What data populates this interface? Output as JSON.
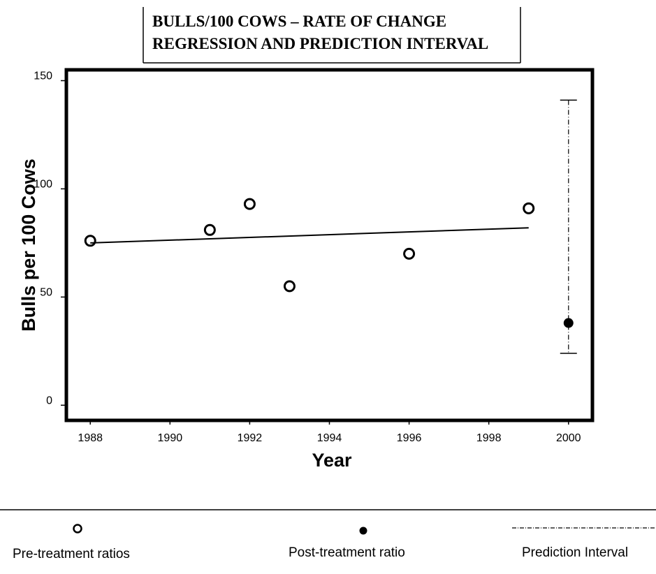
{
  "chart_data": {
    "type": "scatter",
    "title_line1": "BULLS/100 COWS – RATE OF CHANGE",
    "title_line2": "REGRESSION AND PREDICTION INTERVAL",
    "xlabel": "Year",
    "ylabel": "Bulls per 100 Cows",
    "xlim": [
      1987.4,
      2000.6
    ],
    "ylim": [
      -7,
      155
    ],
    "x_ticks": [
      1988,
      1990,
      1992,
      1994,
      1996,
      1998,
      2000
    ],
    "y_ticks": [
      0,
      50,
      100,
      150
    ],
    "series": [
      {
        "name": "Pre-treatment ratios",
        "marker": "open-circle",
        "points": [
          {
            "x": 1988,
            "y": 76
          },
          {
            "x": 1991,
            "y": 81
          },
          {
            "x": 1992,
            "y": 93
          },
          {
            "x": 1993,
            "y": 55
          },
          {
            "x": 1996,
            "y": 70
          },
          {
            "x": 1999,
            "y": 91
          }
        ]
      },
      {
        "name": "Post-treatment ratio",
        "marker": "filled-circle",
        "points": [
          {
            "x": 2000,
            "y": 38
          }
        ]
      }
    ],
    "regression_line": {
      "x_start": 1988,
      "y_start": 75,
      "x_end": 1999,
      "y_end": 82
    },
    "prediction_interval": {
      "name": "Prediction Interval",
      "x": 2000,
      "lower": 24,
      "upper": 141
    },
    "legend_position": "bottom"
  }
}
